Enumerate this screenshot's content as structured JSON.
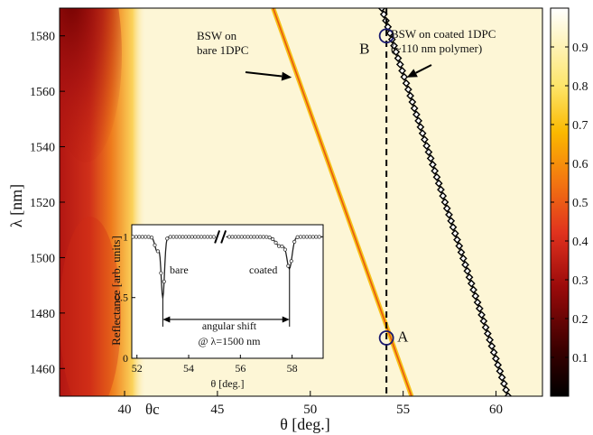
{
  "chart_data": [
    {
      "type": "heatmap",
      "xlabel": "θ [deg.]",
      "ylabel": "λ [nm]",
      "xlim": [
        36.5,
        62.5
      ],
      "ylim": [
        1450,
        1590
      ],
      "x_ticks": [
        40,
        45,
        50,
        55,
        60
      ],
      "x_tick_labels": [
        "40",
        "45",
        "50",
        "55",
        "60"
      ],
      "y_ticks": [
        1460,
        1480,
        1500,
        1520,
        1540,
        1560,
        1580
      ],
      "y_tick_labels": [
        "1460",
        "1480",
        "1500",
        "1520",
        "1540",
        "1560",
        "1580"
      ],
      "special_x_label": "θc",
      "special_x_value": 41.5,
      "colorbar": {
        "range": [
          0,
          1
        ],
        "ticks": [
          0.1,
          0.2,
          0.3,
          0.4,
          0.5,
          0.6,
          0.7,
          0.8,
          0.9
        ],
        "tick_labels": [
          "0.1",
          "0.2",
          "0.3",
          "0.4",
          "0.5",
          "0.6",
          "0.7",
          "0.8",
          "0.9"
        ]
      },
      "series": [
        {
          "points": [
            [
              48.0,
              1590
            ],
            [
              55.45,
              1450
            ]
          ]
        },
        {
          "points": [
            [
              53.85,
              1590
            ],
            [
              60.65,
              1450
            ]
          ]
        }
      ],
      "vline_x": 54.1,
      "markers": [
        {
          "label": "A",
          "x": 54.1,
          "y": 1471
        },
        {
          "label": "B",
          "x": 54.1,
          "y": 1580
        }
      ],
      "annotations": [
        {
          "lines": [
            "BSW on",
            "bare 1DPC"
          ],
          "arrow_to": [
            49.0,
            1565
          ]
        },
        {
          "lines": [
            "BSW on coated 1DPC",
            "(~110 nm polymer)"
          ],
          "arrow_to": [
            55.2,
            1565
          ]
        }
      ]
    },
    {
      "type": "line",
      "xlabel": "θ [deg.]",
      "ylabel": "Reflectance [arb. units]",
      "xlim": [
        51.8,
        59.2
      ],
      "ylim": [
        0,
        1.1
      ],
      "x_ticks": [
        52,
        54,
        56,
        58
      ],
      "x_tick_labels": [
        "52",
        "54",
        "56",
        "58"
      ],
      "y_ticks": [
        0,
        0.5,
        1
      ],
      "y_tick_labels": [
        "0",
        "0.5",
        "1"
      ],
      "dips": [
        {
          "label": "bare",
          "x": 53.0,
          "min": 0.5
        },
        {
          "label": "coated",
          "x": 57.9,
          "min": 0.75
        }
      ],
      "shift_arrow": {
        "from": 53.0,
        "to": 57.9,
        "y": 0.32
      },
      "shift_lines": [
        "angular shift",
        "@ λ=1500 nm"
      ]
    }
  ]
}
